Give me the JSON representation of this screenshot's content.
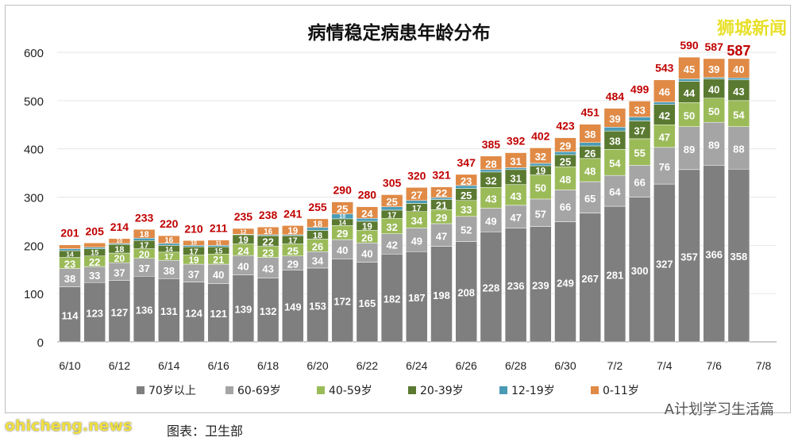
{
  "title": "病情稳定病患年龄分布",
  "watermark": "狮城新闻",
  "footer": {
    "source": "ohicheng.news",
    "caption": "图表：卫生部",
    "account": "A计划学习生活篇"
  },
  "colors": {
    "70+": "#7f7f7f",
    "60-69": "#a5a5a5",
    "40-59": "#9bbb59",
    "20-39": "#5b7a31",
    "12-19": "#4a9bb5",
    "0-11": "#e08a46",
    "total": "#c00000"
  },
  "chart_data": {
    "type": "bar",
    "stacked": true,
    "title": "病情稳定病患年龄分布",
    "categories": [
      "6/10",
      "6/11",
      "6/12",
      "6/13",
      "6/14",
      "6/15",
      "6/16",
      "6/17",
      "6/18",
      "6/19",
      "6/20",
      "6/21",
      "6/22",
      "6/23",
      "6/24",
      "6/25",
      "6/26",
      "6/27",
      "6/28",
      "6/29",
      "6/30",
      "7/1",
      "7/2",
      "7/3",
      "7/4",
      "7/5",
      "7/6",
      "7/7"
    ],
    "x_tick_labels": [
      "6/10",
      "6/12",
      "6/14",
      "6/16",
      "6/18",
      "6/20",
      "6/22",
      "6/24",
      "6/26",
      "6/28",
      "6/30",
      "7/2",
      "7/4",
      "7/6",
      "7/8"
    ],
    "ylim": [
      0,
      600
    ],
    "y_ticks": [
      0,
      100,
      200,
      300,
      400,
      500,
      600
    ],
    "grid": true,
    "legend": "bottom",
    "series": [
      {
        "name": "70岁以上",
        "values": [
          114,
          123,
          127,
          136,
          131,
          124,
          121,
          139,
          132,
          149,
          153,
          172,
          165,
          182,
          187,
          198,
          208,
          228,
          236,
          239,
          249,
          267,
          281,
          300,
          327,
          357,
          366,
          358
        ]
      },
      {
        "name": "60-69岁",
        "values": [
          38,
          33,
          37,
          37,
          38,
          37,
          40,
          40,
          43,
          29,
          34,
          40,
          40,
          42,
          49,
          47,
          52,
          49,
          47,
          57,
          66,
          65,
          64,
          66,
          76,
          89,
          89,
          88
        ]
      },
      {
        "name": "40-59岁",
        "values": [
          23,
          22,
          20,
          20,
          17,
          19,
          21,
          24,
          23,
          25,
          26,
          29,
          26,
          32,
          34,
          29,
          33,
          43,
          43,
          50,
          48,
          48,
          54,
          55,
          47,
          50,
          50,
          54
        ]
      },
      {
        "name": "20-39岁",
        "values": [
          14,
          15,
          18,
          17,
          14,
          17,
          15,
          19,
          22,
          17,
          18,
          14,
          19,
          17,
          17,
          21,
          25,
          32,
          31,
          19,
          25,
          26,
          38,
          37,
          42,
          44,
          40,
          43
        ]
      },
      {
        "name": "12-19岁",
        "values": [
          4,
          3,
          2,
          5,
          4,
          3,
          3,
          1,
          2,
          2,
          6,
          10,
          6,
          7,
          6,
          4,
          6,
          5,
          4,
          5,
          6,
          7,
          8,
          8,
          5,
          5,
          3,
          4
        ]
      },
      {
        "name": "0-11岁",
        "values": [
          8,
          9,
          10,
          18,
          16,
          10,
          11,
          12,
          16,
          19,
          18,
          25,
          24,
          25,
          27,
          22,
          23,
          28,
          31,
          32,
          29,
          38,
          39,
          33,
          46,
          45,
          39,
          40
        ]
      }
    ],
    "totals": [
      201,
      205,
      214,
      233,
      220,
      210,
      211,
      235,
      238,
      241,
      255,
      290,
      280,
      305,
      320,
      321,
      347,
      385,
      392,
      402,
      423,
      451,
      484,
      499,
      543,
      590,
      587,
      587
    ]
  }
}
